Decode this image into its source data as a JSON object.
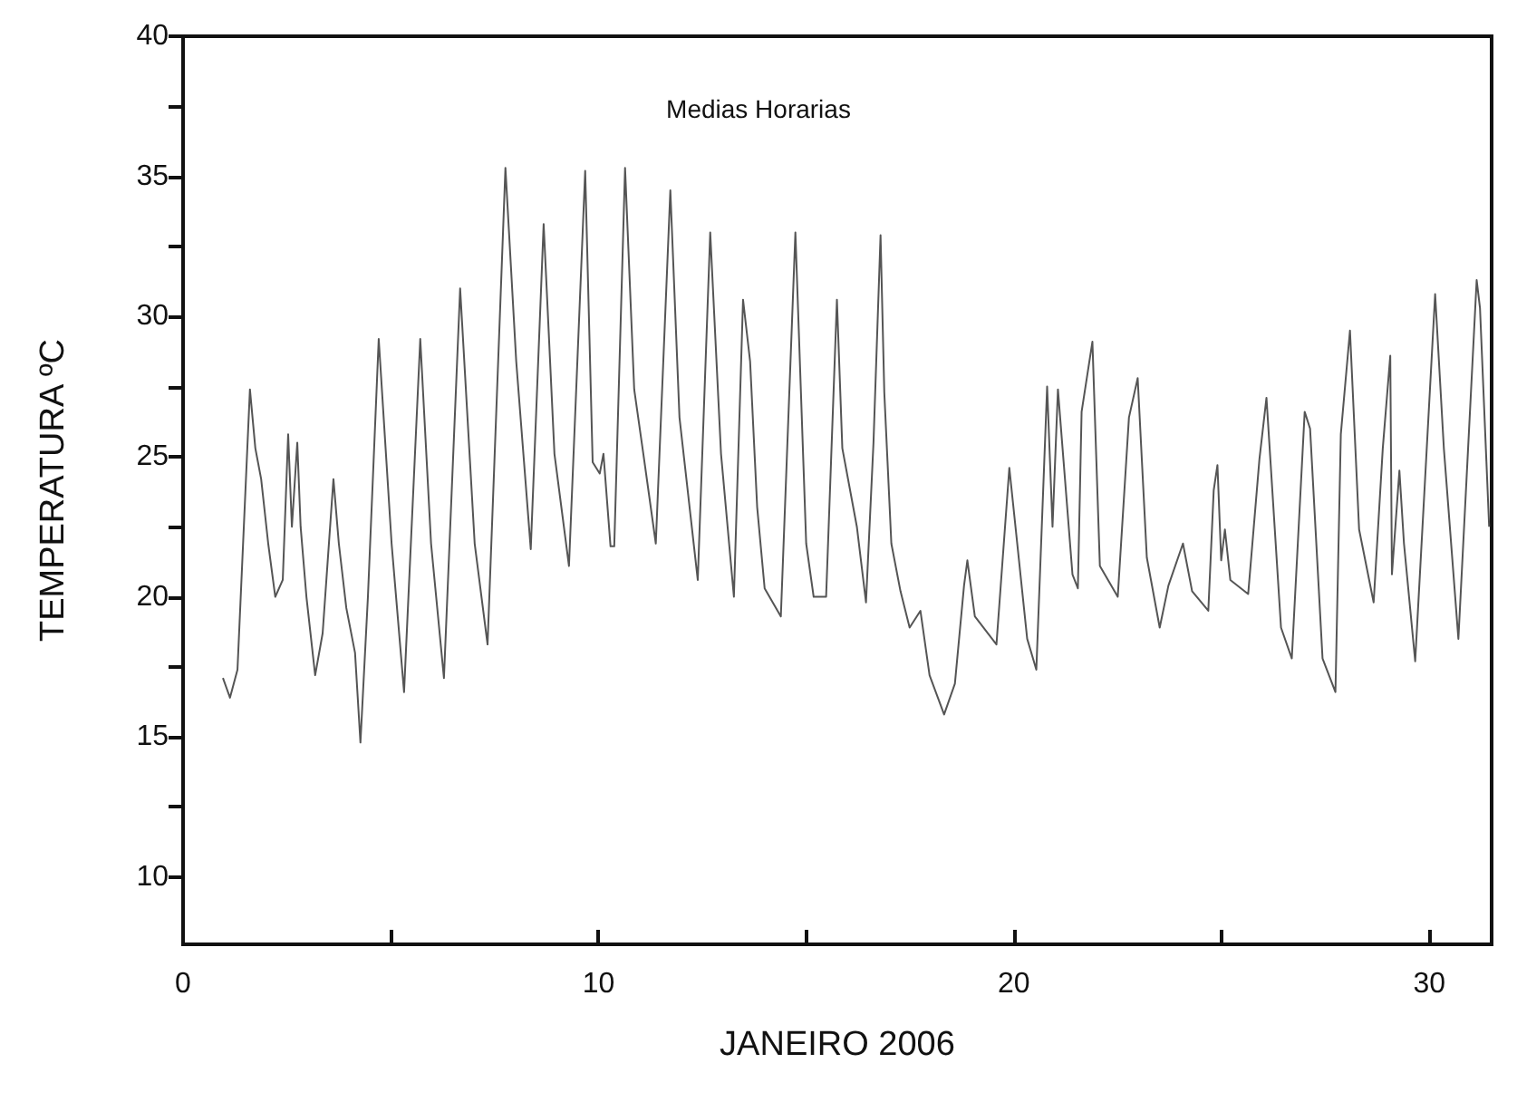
{
  "chart_data": {
    "type": "line",
    "title": "Medias Horarias",
    "xlabel": "JANEIRO 2006",
    "ylabel": "TEMPERATURA ºC",
    "xlim": [
      0,
      31.5
    ],
    "ylim": [
      7.6,
      40
    ],
    "xticks": [
      0,
      {
        "value": 5,
        "label": null
      },
      10,
      {
        "value": 15,
        "label": null
      },
      20,
      {
        "value": 25,
        "label": null
      },
      30
    ],
    "yticks": [
      10,
      {
        "value": 12.5,
        "label": null
      },
      15,
      {
        "value": 17.5,
        "label": null
      },
      20,
      {
        "value": 22.5,
        "label": null
      },
      25,
      {
        "value": 27.5,
        "label": null
      },
      30,
      {
        "value": 32.5,
        "label": null
      },
      35,
      {
        "value": 37.5,
        "label": null
      },
      40
    ],
    "grid": false,
    "marker": "none",
    "line_style": "solid",
    "series": [
      {
        "color": "#555555",
        "x": [
          0.96,
          1.13,
          1.31,
          1.61,
          1.74,
          1.88,
          2.05,
          2.22,
          2.4,
          2.53,
          2.62,
          2.75,
          2.83,
          2.97,
          3.18,
          3.36,
          3.62,
          3.75,
          3.93,
          4.14,
          4.27,
          4.45,
          4.71,
          5.02,
          5.32,
          5.71,
          5.97,
          6.28,
          6.67,
          7.02,
          7.33,
          7.76,
          8.02,
          8.37,
          8.68,
          8.94,
          9.29,
          9.68,
          9.86,
          10.03,
          10.12,
          10.29,
          10.38,
          10.64,
          10.86,
          11.08,
          11.38,
          11.73,
          11.95,
          12.39,
          12.69,
          12.95,
          13.26,
          13.48,
          13.65,
          13.82,
          14.0,
          14.39,
          14.74,
          15.0,
          15.18,
          15.48,
          15.74,
          15.87,
          16.22,
          16.44,
          16.62,
          16.79,
          16.88,
          17.05,
          17.27,
          17.49,
          17.75,
          17.97,
          18.32,
          18.58,
          18.8,
          18.88,
          19.06,
          19.58,
          19.89,
          20.32,
          20.54,
          20.8,
          20.93,
          21.06,
          21.41,
          21.54,
          21.63,
          21.89,
          22.07,
          22.5,
          22.77,
          22.98,
          23.2,
          23.51,
          23.72,
          24.07,
          24.29,
          24.68,
          24.81,
          24.9,
          24.99,
          25.08,
          25.21,
          25.64,
          25.91,
          26.08,
          26.43,
          26.69,
          27.0,
          27.13,
          27.43,
          27.74,
          27.87,
          28.09,
          28.31,
          28.66,
          28.88,
          29.06,
          29.1,
          29.28,
          29.39,
          29.66,
          30.14,
          30.35,
          30.7,
          31.14,
          31.22,
          31.44
        ],
        "values": [
          17.1,
          16.4,
          17.4,
          27.4,
          25.3,
          24.2,
          21.9,
          20.0,
          20.6,
          25.8,
          22.5,
          25.5,
          22.5,
          20.0,
          17.2,
          18.7,
          24.2,
          21.9,
          19.6,
          18.0,
          14.8,
          20.0,
          29.2,
          21.9,
          16.6,
          29.2,
          21.9,
          17.1,
          31.0,
          21.9,
          18.3,
          35.3,
          28.4,
          21.7,
          33.3,
          25.1,
          21.1,
          35.2,
          24.8,
          24.4,
          25.1,
          21.8,
          21.8,
          35.3,
          27.4,
          25.1,
          21.9,
          34.5,
          26.4,
          20.6,
          33.0,
          25.1,
          20.0,
          30.6,
          28.4,
          23.2,
          20.3,
          19.3,
          33.0,
          21.9,
          20.0,
          20.0,
          30.6,
          25.3,
          22.5,
          19.8,
          25.5,
          32.9,
          27.3,
          21.9,
          20.2,
          18.9,
          19.5,
          17.2,
          15.8,
          16.9,
          20.4,
          21.3,
          19.3,
          18.3,
          24.6,
          18.5,
          17.4,
          27.5,
          22.5,
          27.4,
          20.8,
          20.3,
          26.6,
          29.1,
          21.1,
          20.0,
          26.4,
          27.8,
          21.4,
          18.9,
          20.4,
          21.9,
          20.2,
          19.5,
          23.8,
          24.7,
          21.3,
          22.4,
          20.6,
          20.1,
          24.9,
          27.1,
          18.9,
          17.8,
          26.6,
          26.0,
          17.8,
          16.6,
          25.8,
          29.5,
          22.4,
          19.8,
          25.3,
          28.6,
          20.8,
          24.5,
          21.9,
          17.7,
          30.8,
          25.3,
          18.5,
          31.3,
          30.3,
          22.5
        ]
      }
    ]
  }
}
